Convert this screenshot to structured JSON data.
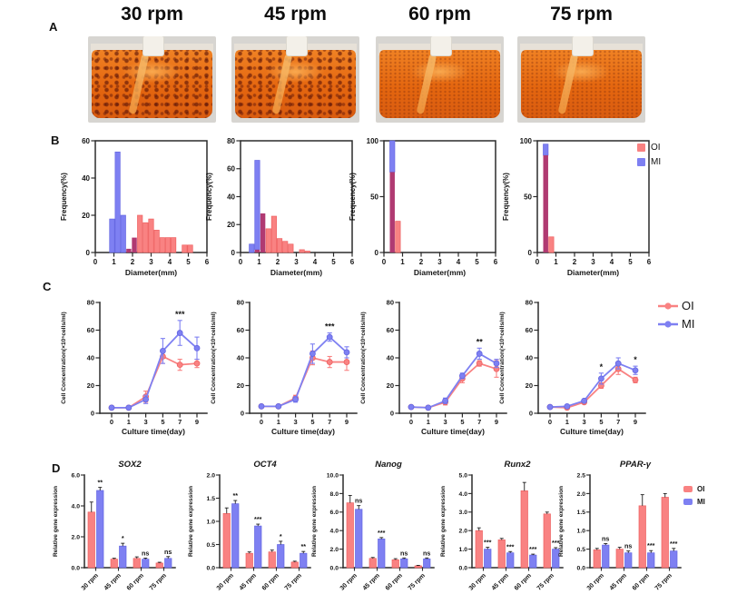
{
  "figure": {
    "colors": {
      "oi": "#f98282",
      "mi": "#7e80f2",
      "overlap": "#b03a72",
      "oi_stroke": "#ee6262",
      "mi_stroke": "#6466e2",
      "axis": "#2b2b2b",
      "error": "#1f1f1f"
    },
    "legend": {
      "oi": "OI",
      "mi": "MI"
    }
  },
  "panel_a": {
    "label": "A",
    "photos": [
      {
        "title": "30 rpm",
        "aggregates": "large"
      },
      {
        "title": "45 rpm",
        "aggregates": "large"
      },
      {
        "title": "60 rpm",
        "aggregates": "small"
      },
      {
        "title": "75 rpm",
        "aggregates": "small"
      }
    ]
  },
  "panel_b": {
    "label": "B"
  },
  "panel_c": {
    "label": "C"
  },
  "panel_d": {
    "label": "D"
  },
  "chart_data": {
    "histograms": [
      {
        "type": "bar",
        "subtype": "histogram",
        "condition": "30 rpm",
        "xlabel": "Diameter(mm)",
        "ylabel": "Frequency(%)",
        "xlim": [
          0,
          6
        ],
        "ylim": [
          0,
          60
        ],
        "xticks": [
          0,
          1,
          2,
          3,
          4,
          5,
          6
        ],
        "yticks": [
          0,
          20,
          40,
          60
        ],
        "bin_width": 0.3,
        "bins": [
          {
            "x": 0.9,
            "mi": 18,
            "oi": 0
          },
          {
            "x": 1.2,
            "mi": 54,
            "oi": 0
          },
          {
            "x": 1.5,
            "mi": 20,
            "oi": 0
          },
          {
            "x": 1.8,
            "mi": 2,
            "oi": 2
          },
          {
            "x": 2.1,
            "mi": 8,
            "oi": 8
          },
          {
            "x": 2.4,
            "mi": 0,
            "oi": 20
          },
          {
            "x": 2.7,
            "mi": 0,
            "oi": 16
          },
          {
            "x": 3.0,
            "mi": 0,
            "oi": 18
          },
          {
            "x": 3.3,
            "mi": 0,
            "oi": 12
          },
          {
            "x": 3.6,
            "mi": 0,
            "oi": 8
          },
          {
            "x": 3.9,
            "mi": 0,
            "oi": 8
          },
          {
            "x": 4.2,
            "mi": 0,
            "oi": 8
          },
          {
            "x": 4.8,
            "mi": 0,
            "oi": 4
          },
          {
            "x": 5.1,
            "mi": 0,
            "oi": 4
          }
        ]
      },
      {
        "type": "bar",
        "subtype": "histogram",
        "condition": "45 rpm",
        "xlabel": "Diameter(mm)",
        "ylabel": "Frequency(%)",
        "xlim": [
          0,
          6
        ],
        "ylim": [
          0,
          80
        ],
        "xticks": [
          0,
          1,
          2,
          3,
          4,
          5,
          6
        ],
        "yticks": [
          0,
          20,
          40,
          60,
          80
        ],
        "bin_width": 0.3,
        "bins": [
          {
            "x": 0.6,
            "mi": 6,
            "oi": 0
          },
          {
            "x": 0.9,
            "mi": 66,
            "oi": 2
          },
          {
            "x": 1.2,
            "mi": 28,
            "oi": 28
          },
          {
            "x": 1.5,
            "mi": 0,
            "oi": 17
          },
          {
            "x": 1.8,
            "mi": 0,
            "oi": 26
          },
          {
            "x": 2.1,
            "mi": 0,
            "oi": 10
          },
          {
            "x": 2.4,
            "mi": 0,
            "oi": 8
          },
          {
            "x": 2.7,
            "mi": 0,
            "oi": 6
          },
          {
            "x": 3.3,
            "mi": 0,
            "oi": 2
          },
          {
            "x": 3.6,
            "mi": 0,
            "oi": 1
          }
        ]
      },
      {
        "type": "bar",
        "subtype": "histogram",
        "condition": "60 rpm",
        "xlabel": "Diameter(mm)",
        "ylabel": "Frequency(%)",
        "xlim": [
          0,
          6
        ],
        "ylim": [
          0,
          100
        ],
        "xticks": [
          0,
          1,
          2,
          3,
          4,
          5,
          6
        ],
        "yticks": [
          0,
          50,
          100
        ],
        "bin_width": 0.3,
        "bins": [
          {
            "x": 0.45,
            "mi": 100,
            "oi": 72
          },
          {
            "x": 0.75,
            "mi": 0,
            "oi": 28
          }
        ]
      },
      {
        "type": "bar",
        "subtype": "histogram",
        "condition": "75 rpm",
        "xlabel": "Diameter(mm)",
        "ylabel": "Frequency(%)",
        "xlim": [
          0,
          6
        ],
        "ylim": [
          0,
          100
        ],
        "xticks": [
          0,
          1,
          2,
          3,
          4,
          5,
          6
        ],
        "yticks": [
          0,
          50,
          100
        ],
        "bin_width": 0.3,
        "bins": [
          {
            "x": 0.45,
            "mi": 97,
            "oi": 87
          },
          {
            "x": 0.75,
            "mi": 0,
            "oi": 14
          }
        ]
      }
    ],
    "growth_curves": [
      {
        "type": "line",
        "condition": "30 rpm",
        "xlabel": "Culture time(day)",
        "ylabel": "Cell Concentration(×10⁶cells/ml)",
        "x": [
          0,
          1,
          3,
          5,
          7,
          9
        ],
        "ylim": [
          0,
          80
        ],
        "yticks": [
          0,
          20,
          40,
          60,
          80
        ],
        "series": [
          {
            "name": "OI",
            "values": [
              4,
              4,
              12,
              41,
              35,
              36
            ],
            "err": [
              1,
              1,
              4,
              5,
              4,
              3
            ]
          },
          {
            "name": "MI",
            "values": [
              4,
              4,
              10,
              45,
              58,
              47
            ],
            "err": [
              1,
              1,
              3,
              9,
              9,
              8
            ]
          }
        ],
        "annotations": [
          {
            "day": 7,
            "text": "***"
          }
        ]
      },
      {
        "type": "line",
        "condition": "45 rpm",
        "xlabel": "Culture time(day)",
        "ylabel": "Cell Concentration(×10⁶cells/ml)",
        "x": [
          0,
          1,
          3,
          5,
          7,
          9
        ],
        "ylim": [
          0,
          80
        ],
        "yticks": [
          0,
          20,
          40,
          60,
          80
        ],
        "series": [
          {
            "name": "OI",
            "values": [
              5,
              5,
              11,
              40,
              37,
              37
            ],
            "err": [
              1,
              1,
              2,
              5,
              4,
              6
            ]
          },
          {
            "name": "MI",
            "values": [
              5,
              5,
              10,
              43,
              55,
              44
            ],
            "err": [
              1,
              1,
              2,
              7,
              3,
              4
            ]
          }
        ],
        "annotations": [
          {
            "day": 7,
            "text": "***"
          }
        ]
      },
      {
        "type": "line",
        "condition": "60 rpm",
        "xlabel": "Culture time(day)",
        "ylabel": "Cell Concentration(×10⁶cells/ml)",
        "x": [
          0,
          1,
          3,
          5,
          7,
          9
        ],
        "ylim": [
          0,
          80
        ],
        "yticks": [
          0,
          20,
          40,
          60,
          80
        ],
        "series": [
          {
            "name": "OI",
            "values": [
              4.5,
              4,
              8,
              25,
              36,
              32
            ],
            "err": [
              1,
              1,
              2,
              3,
              2,
              6
            ]
          },
          {
            "name": "MI",
            "values": [
              4.5,
              4,
              9,
              27,
              43,
              36
            ],
            "err": [
              1,
              1,
              2,
              2,
              4,
              3
            ]
          }
        ],
        "annotations": [
          {
            "day": 7,
            "text": "**"
          }
        ]
      },
      {
        "type": "line",
        "condition": "75 rpm",
        "xlabel": "Culture time(day)",
        "ylabel": "Cell Concentration(×10⁶cells/ml)",
        "x": [
          0,
          1,
          3,
          5,
          7,
          9
        ],
        "ylim": [
          0,
          80
        ],
        "yticks": [
          0,
          20,
          40,
          60,
          80
        ],
        "series": [
          {
            "name": "OI",
            "values": [
              4.5,
              4,
              8,
              20,
              32,
              24
            ],
            "err": [
              1,
              1,
              1,
              2,
              4,
              2
            ]
          },
          {
            "name": "MI",
            "values": [
              4.5,
              5,
              9,
              25,
              36,
              31
            ],
            "err": [
              1,
              1,
              1,
              4,
              4,
              3
            ]
          }
        ],
        "annotations": [
          {
            "day": 5,
            "text": "*"
          },
          {
            "day": 9,
            "text": "*"
          }
        ]
      }
    ],
    "gene_expression": [
      {
        "type": "bar",
        "gene": "SOX2",
        "ylabel": "Relative gene expression",
        "categories": [
          "30 rpm",
          "45 rpm",
          "60 rpm",
          "75 rpm"
        ],
        "ylim": [
          0,
          6
        ],
        "yticks": [
          0,
          2,
          4,
          6
        ],
        "series": [
          {
            "name": "OI",
            "values": [
              3.6,
              0.55,
              0.6,
              0.3
            ],
            "err": [
              0.65,
              0.06,
              0.1,
              0.05
            ]
          },
          {
            "name": "MI",
            "values": [
              5.0,
              1.4,
              0.55,
              0.6
            ],
            "err": [
              0.2,
              0.18,
              0.07,
              0.12
            ]
          }
        ],
        "sig": [
          "**",
          "*",
          "ns",
          "ns"
        ]
      },
      {
        "type": "bar",
        "gene": "OCT4",
        "ylabel": "Relative gene expression",
        "categories": [
          "30 rpm",
          "45 rpm",
          "60 rpm",
          "75 rpm"
        ],
        "ylim": [
          0,
          2
        ],
        "yticks": [
          0,
          0.5,
          1,
          1.5,
          2
        ],
        "series": [
          {
            "name": "OI",
            "values": [
              1.17,
              0.31,
              0.34,
              0.12
            ],
            "err": [
              0.12,
              0.03,
              0.04,
              0.02
            ]
          },
          {
            "name": "MI",
            "values": [
              1.38,
              0.9,
              0.5,
              0.31
            ],
            "err": [
              0.07,
              0.04,
              0.07,
              0.04
            ]
          }
        ],
        "sig": [
          "**",
          "***",
          "*",
          "**"
        ]
      },
      {
        "type": "bar",
        "gene": "Nanog",
        "ylabel": "Relative gene expression",
        "categories": [
          "30 rpm",
          "45 rpm",
          "60 rpm",
          "75 rpm"
        ],
        "ylim": [
          0,
          10
        ],
        "yticks": [
          0,
          2,
          4,
          6,
          8,
          10
        ],
        "series": [
          {
            "name": "OI",
            "values": [
              7.0,
              1.0,
              0.85,
              0.2
            ],
            "err": [
              0.8,
              0.1,
              0.12,
              0.05
            ]
          },
          {
            "name": "MI",
            "values": [
              6.3,
              3.1,
              0.95,
              0.95
            ],
            "err": [
              0.4,
              0.15,
              0.1,
              0.1
            ]
          }
        ],
        "sig": [
          "ns",
          "***",
          "ns",
          "ns"
        ]
      },
      {
        "type": "bar",
        "gene": "Runx2",
        "ylabel": "Relative gene expression",
        "categories": [
          "30 rpm",
          "45 rpm",
          "60 rpm",
          "75 rpm"
        ],
        "ylim": [
          0,
          5
        ],
        "yticks": [
          0,
          1,
          2,
          3,
          4,
          5
        ],
        "series": [
          {
            "name": "OI",
            "values": [
              2.0,
              1.5,
              4.15,
              2.9
            ],
            "err": [
              0.15,
              0.08,
              0.45,
              0.1
            ]
          },
          {
            "name": "MI",
            "values": [
              1.0,
              0.8,
              0.68,
              1.0
            ],
            "err": [
              0.1,
              0.07,
              0.05,
              0.08
            ]
          }
        ],
        "sig": [
          "***",
          "***",
          "***",
          "***"
        ]
      },
      {
        "type": "bar",
        "gene": "PPAR-γ",
        "ylabel": "Relative gene expression",
        "categories": [
          "30 rpm",
          "45 rpm",
          "60 rpm",
          "75 rpm"
        ],
        "ylim": [
          0,
          2.5
        ],
        "yticks": [
          0,
          0.5,
          1,
          1.5,
          2,
          2.5
        ],
        "series": [
          {
            "name": "OI",
            "values": [
              0.48,
              0.5,
              1.67,
              1.9
            ],
            "err": [
              0.04,
              0.05,
              0.3,
              0.1
            ]
          },
          {
            "name": "MI",
            "values": [
              0.61,
              0.4,
              0.4,
              0.45
            ],
            "err": [
              0.04,
              0.05,
              0.06,
              0.07
            ]
          }
        ],
        "sig": [
          "ns",
          "ns",
          "***",
          "***"
        ]
      }
    ]
  }
}
